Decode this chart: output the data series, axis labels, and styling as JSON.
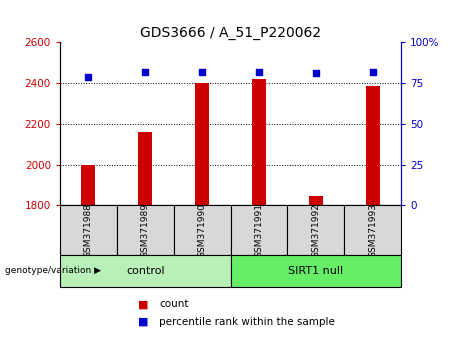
{
  "title": "GDS3666 / A_51_P220062",
  "samples": [
    "GSM371988",
    "GSM371989",
    "GSM371990",
    "GSM371991",
    "GSM371992",
    "GSM371993"
  ],
  "counts": [
    1998,
    2160,
    2400,
    2420,
    1848,
    2385
  ],
  "percentile_ranks": [
    79,
    82,
    82,
    82,
    81,
    82
  ],
  "bar_color": "#CC0000",
  "dot_color": "#0000CC",
  "ylim_left": [
    1800,
    2600
  ],
  "ylim_right": [
    0,
    100
  ],
  "yticks_left": [
    1800,
    2000,
    2200,
    2400,
    2600
  ],
  "yticks_right": [
    0,
    25,
    50,
    75,
    100
  ],
  "grid_values": [
    2000,
    2200,
    2400
  ],
  "background_color": "#ffffff",
  "label_count": "count",
  "label_percentile": "percentile rank within the sample",
  "control_color": "#b8f0b8",
  "sirt1_color": "#66ee66",
  "cell_gray": "#d8d8d8"
}
